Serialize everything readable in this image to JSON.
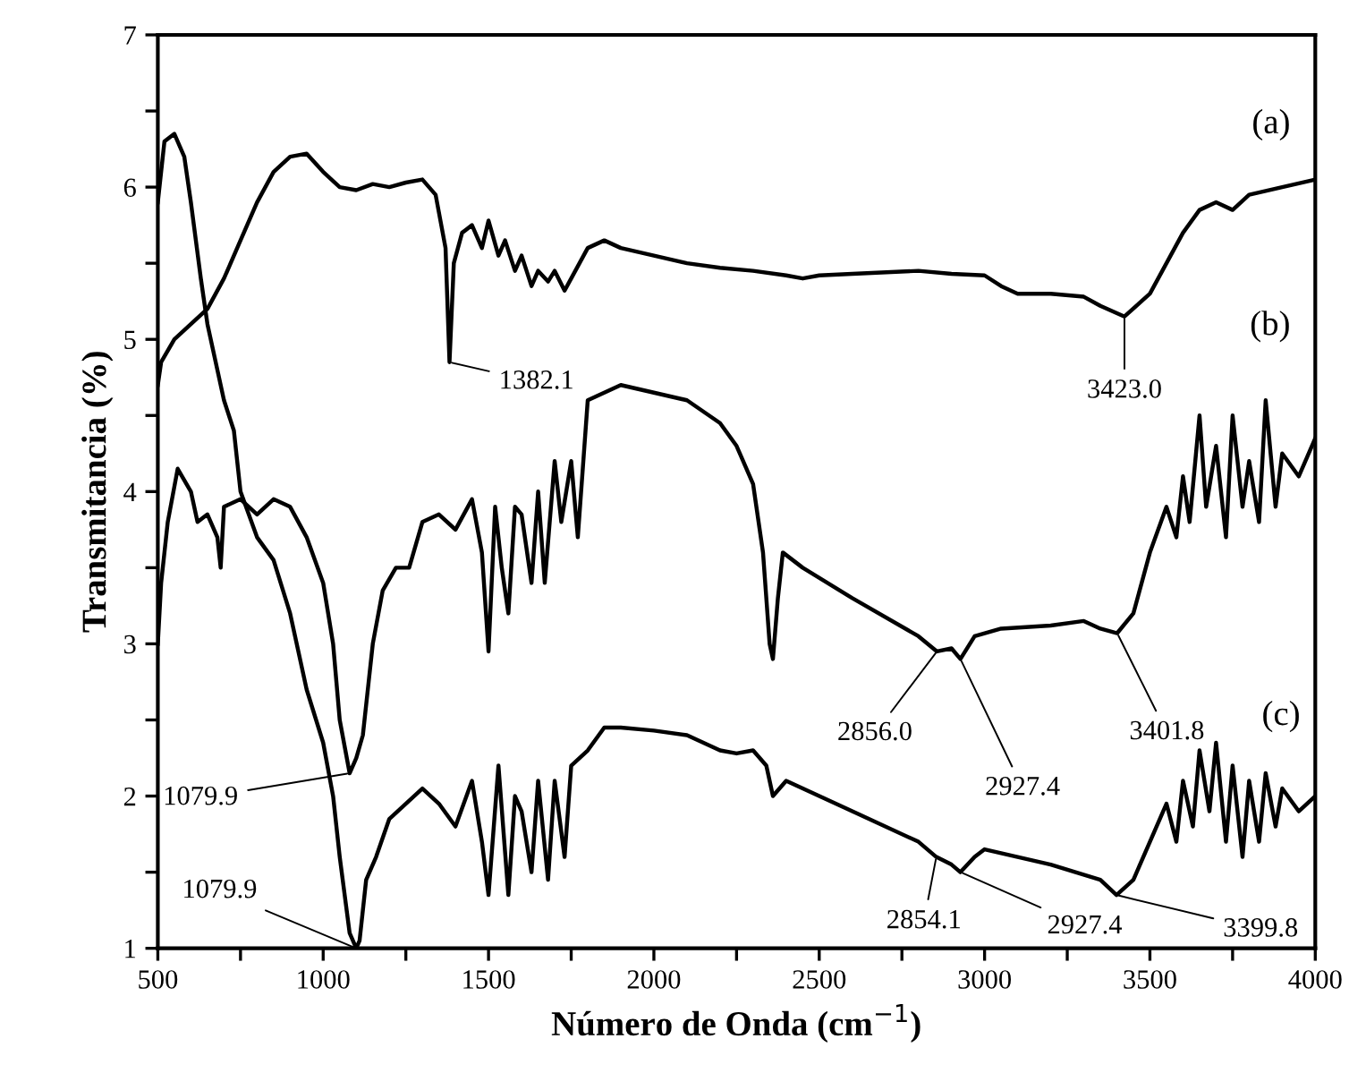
{
  "chart_data": {
    "type": "line",
    "xlabel": "Número de Onda (cm$^{−1}$)",
    "ylabel": "Transmitancia (%)",
    "xlim": [
      500,
      4000
    ],
    "ylim": [
      1,
      7
    ],
    "xticks": [
      500,
      {
        "value": 750,
        "label": null
      },
      1000,
      {
        "value": 1250,
        "label": null
      },
      1500,
      {
        "value": 1750,
        "label": null
      },
      2000,
      {
        "value": 2250,
        "label": null
      },
      2500,
      {
        "value": 2750,
        "label": null
      },
      3000,
      {
        "value": 3250,
        "label": null
      },
      3500,
      {
        "value": 3750,
        "label": null
      },
      4000
    ],
    "yticks": [
      1,
      {
        "value": 1.5,
        "label": null
      },
      2,
      {
        "value": 2.5,
        "label": null
      },
      3,
      {
        "value": 3.5,
        "label": null
      },
      4,
      {
        "value": 4.5,
        "label": null
      },
      5,
      {
        "value": 5.5,
        "label": null
      },
      6,
      {
        "value": 6.5,
        "label": null
      },
      7
    ],
    "grid": false,
    "legend": false,
    "marker": "none",
    "line_style": "solid",
    "series": [
      {
        "name": "(a)",
        "color": "#000000",
        "x": [
          500,
          510,
          550,
          600,
          650,
          700,
          750,
          800,
          850,
          900,
          950,
          1000,
          1050,
          1100,
          1150,
          1200,
          1250,
          1300,
          1340,
          1370,
          1382,
          1395,
          1420,
          1450,
          1480,
          1500,
          1530,
          1550,
          1580,
          1600,
          1630,
          1650,
          1680,
          1700,
          1730,
          1750,
          1800,
          1850,
          1900,
          2000,
          2100,
          2200,
          2300,
          2400,
          2450,
          2500,
          2600,
          2800,
          2900,
          3000,
          3050,
          3100,
          3200,
          3300,
          3350,
          3423,
          3500,
          3550,
          3600,
          3650,
          3700,
          3750,
          3800,
          3900,
          4000
        ],
        "values": [
          4.7,
          4.85,
          5.0,
          5.1,
          5.2,
          5.4,
          5.65,
          5.9,
          6.1,
          6.2,
          6.22,
          6.1,
          6.0,
          5.98,
          6.02,
          6.0,
          6.03,
          6.05,
          5.95,
          5.6,
          4.85,
          5.5,
          5.7,
          5.75,
          5.6,
          5.78,
          5.55,
          5.65,
          5.45,
          5.55,
          5.35,
          5.45,
          5.38,
          5.45,
          5.32,
          5.4,
          5.6,
          5.65,
          5.6,
          5.55,
          5.5,
          5.47,
          5.45,
          5.42,
          5.4,
          5.42,
          5.43,
          5.45,
          5.43,
          5.42,
          5.35,
          5.3,
          5.3,
          5.28,
          5.22,
          5.15,
          5.3,
          5.5,
          5.7,
          5.85,
          5.9,
          5.85,
          5.95,
          6.0,
          6.05
        ]
      },
      {
        "name": "(b)",
        "color": "#000000",
        "x": [
          500,
          510,
          530,
          560,
          600,
          620,
          650,
          680,
          690,
          700,
          750,
          800,
          850,
          900,
          950,
          1000,
          1030,
          1050,
          1080,
          1100,
          1120,
          1150,
          1180,
          1220,
          1260,
          1300,
          1350,
          1400,
          1450,
          1480,
          1500,
          1520,
          1540,
          1560,
          1580,
          1600,
          1630,
          1650,
          1670,
          1700,
          1720,
          1750,
          1770,
          1800,
          1850,
          1900,
          2000,
          2100,
          2200,
          2250,
          2300,
          2330,
          2350,
          2360,
          2375,
          2390,
          2450,
          2600,
          2800,
          2856,
          2900,
          2927,
          2970,
          3050,
          3200,
          3300,
          3350,
          3401,
          3450,
          3500,
          3550,
          3580,
          3600,
          3620,
          3650,
          3670,
          3700,
          3730,
          3750,
          3780,
          3800,
          3830,
          3850,
          3880,
          3900,
          3950,
          4000
        ],
        "values": [
          3.0,
          3.4,
          3.8,
          4.15,
          4.0,
          3.8,
          3.85,
          3.7,
          3.5,
          3.9,
          3.95,
          3.85,
          3.95,
          3.9,
          3.7,
          3.4,
          3.0,
          2.5,
          2.15,
          2.25,
          2.4,
          3.0,
          3.35,
          3.5,
          3.5,
          3.8,
          3.85,
          3.75,
          3.95,
          3.6,
          2.95,
          3.9,
          3.5,
          3.2,
          3.9,
          3.85,
          3.4,
          4.0,
          3.4,
          4.2,
          3.8,
          4.2,
          3.7,
          4.6,
          4.65,
          4.7,
          4.65,
          4.6,
          4.45,
          4.3,
          4.05,
          3.6,
          3.0,
          2.9,
          3.3,
          3.6,
          3.5,
          3.3,
          3.05,
          2.95,
          2.97,
          2.9,
          3.05,
          3.1,
          3.12,
          3.15,
          3.1,
          3.07,
          3.2,
          3.6,
          3.9,
          3.7,
          4.1,
          3.8,
          4.5,
          3.9,
          4.3,
          3.7,
          4.5,
          3.9,
          4.2,
          3.8,
          4.6,
          3.9,
          4.25,
          4.1,
          4.35
        ]
      },
      {
        "name": "(c)",
        "color": "#000000",
        "x": [
          500,
          520,
          550,
          580,
          600,
          630,
          650,
          700,
          730,
          750,
          800,
          850,
          900,
          950,
          1000,
          1030,
          1050,
          1080,
          1100,
          1110,
          1130,
          1160,
          1200,
          1250,
          1300,
          1350,
          1400,
          1450,
          1480,
          1500,
          1530,
          1560,
          1580,
          1600,
          1630,
          1650,
          1680,
          1700,
          1730,
          1750,
          1800,
          1850,
          1900,
          2000,
          2100,
          2200,
          2250,
          2300,
          2340,
          2360,
          2380,
          2400,
          2600,
          2800,
          2854,
          2900,
          2927,
          2970,
          3000,
          3200,
          3350,
          3399,
          3450,
          3500,
          3550,
          3580,
          3600,
          3630,
          3650,
          3680,
          3700,
          3730,
          3750,
          3780,
          3800,
          3830,
          3850,
          3880,
          3900,
          3950,
          4000
        ],
        "values": [
          5.9,
          6.3,
          6.35,
          6.2,
          5.9,
          5.4,
          5.1,
          4.6,
          4.4,
          4.0,
          3.7,
          3.55,
          3.2,
          2.7,
          2.35,
          2.0,
          1.6,
          1.1,
          1.0,
          1.05,
          1.45,
          1.6,
          1.85,
          1.95,
          2.05,
          1.95,
          1.8,
          2.1,
          1.7,
          1.35,
          2.2,
          1.35,
          2.0,
          1.9,
          1.5,
          2.1,
          1.45,
          2.1,
          1.6,
          2.2,
          2.3,
          2.45,
          2.45,
          2.43,
          2.4,
          2.3,
          2.28,
          2.3,
          2.2,
          2.0,
          2.05,
          2.1,
          1.9,
          1.7,
          1.6,
          1.55,
          1.5,
          1.6,
          1.65,
          1.55,
          1.45,
          1.35,
          1.45,
          1.7,
          1.95,
          1.7,
          2.1,
          1.8,
          2.3,
          1.9,
          2.35,
          1.7,
          2.2,
          1.6,
          2.1,
          1.7,
          2.15,
          1.8,
          2.05,
          1.9,
          2.0
        ]
      }
    ],
    "annotations": [
      {
        "text": "1382.1",
        "x": 1382,
        "y": 4.85
      },
      {
        "text": "3423.0",
        "x": 3423,
        "y": 5.15
      },
      {
        "text": "1079.9",
        "x": 1080,
        "y": 2.15
      },
      {
        "text": "2856.0",
        "x": 2856,
        "y": 2.95
      },
      {
        "text": "2927.4",
        "x": 2927,
        "y": 2.9
      },
      {
        "text": "3401.8",
        "x": 3401,
        "y": 3.07
      },
      {
        "text": "1079.9",
        "x": 1100,
        "y": 1.0
      },
      {
        "text": "2854.1",
        "x": 2854,
        "y": 1.6
      },
      {
        "text": "2927.4",
        "x": 2927,
        "y": 1.5
      },
      {
        "text": "3399.8",
        "x": 3399,
        "y": 1.35
      }
    ]
  }
}
